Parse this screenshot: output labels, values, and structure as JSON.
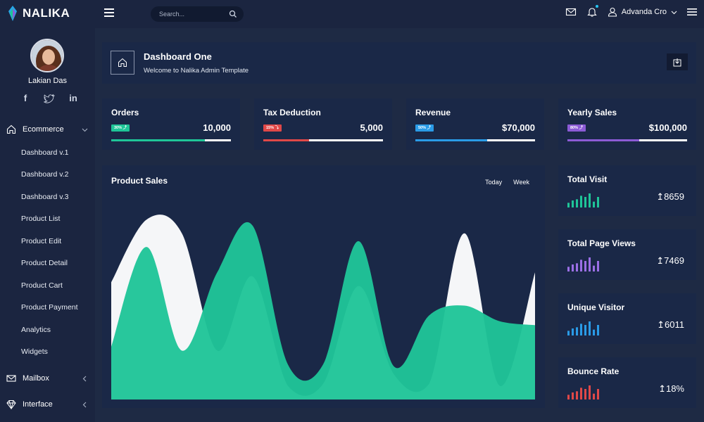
{
  "brand": {
    "name": "NALIKA"
  },
  "search": {
    "placeholder": "Search..."
  },
  "user_menu": {
    "name": "Advanda Cro"
  },
  "sidebar": {
    "profile_name": "Lakian Das",
    "socials": [
      "facebook-icon",
      "twitter-icon",
      "linkedin-icon"
    ],
    "sections": [
      {
        "label": "Ecommerce",
        "icon": "home-icon"
      },
      {
        "label": "Mailbox",
        "icon": "mail-icon"
      },
      {
        "label": "Interface",
        "icon": "diamond-icon"
      }
    ],
    "items": [
      {
        "label": "Dashboard v.1"
      },
      {
        "label": "Dashboard v.2"
      },
      {
        "label": "Dashboard v.3"
      },
      {
        "label": "Product List"
      },
      {
        "label": "Product Edit"
      },
      {
        "label": "Product Detail"
      },
      {
        "label": "Product Cart"
      },
      {
        "label": "Product Payment"
      },
      {
        "label": "Analytics"
      },
      {
        "label": "Widgets"
      }
    ]
  },
  "header": {
    "title": "Dashboard One",
    "subtitle": "Welcome to Nalika Admin Template"
  },
  "stats": [
    {
      "title": "Orders",
      "badge": "30% ⤴",
      "value": "10,000",
      "color": "#1fc598",
      "progress": 0.78
    },
    {
      "title": "Tax Deduction",
      "badge": "15% ⤵",
      "value": "5,000",
      "color": "#e04848",
      "progress": 0.38
    },
    {
      "title": "Revenue",
      "badge": "50% ⤴",
      "value": "$70,000",
      "color": "#2a9be7",
      "progress": 0.6
    },
    {
      "title": "Yearly Sales",
      "badge": "80% ⤴",
      "value": "$100,000",
      "color": "#8c5bd6",
      "progress": 0.6
    }
  ],
  "product_sales": {
    "title": "Product Sales",
    "tabs": [
      "Today",
      "Week"
    ]
  },
  "mini_stats": [
    {
      "title": "Total Visit",
      "value": "↥8659",
      "color": "#1fc598",
      "bars": [
        4,
        6,
        7,
        10,
        9,
        12,
        5,
        9
      ]
    },
    {
      "title": "Total Page Views",
      "value": "↥7469",
      "color": "#9b6fe6",
      "bars": [
        4,
        6,
        7,
        10,
        9,
        12,
        5,
        9
      ]
    },
    {
      "title": "Unique Visitor",
      "value": "↥6011",
      "color": "#2a9be7",
      "bars": [
        4,
        6,
        7,
        10,
        9,
        12,
        5,
        9
      ]
    },
    {
      "title": "Bounce Rate",
      "value": "↥18%",
      "color": "#e04848",
      "bars": [
        4,
        6,
        7,
        10,
        9,
        12,
        5,
        9
      ]
    }
  ],
  "chart_data": {
    "type": "area",
    "title": "Product Sales",
    "x": [
      0,
      1,
      2,
      3,
      4,
      5,
      6,
      7,
      8,
      9,
      10,
      11,
      12
    ],
    "series": [
      {
        "color": "#f5f6f8",
        "values": [
          60,
          92,
          85,
          25,
          63,
          7,
          8,
          58,
          13,
          8,
          85,
          7,
          65
        ]
      },
      {
        "color": "#1fc598",
        "values": [
          27,
          78,
          25,
          65,
          89,
          18,
          18,
          81,
          17,
          43,
          48,
          40,
          38
        ]
      }
    ],
    "ylim": [
      0,
      100
    ],
    "grid": false
  }
}
